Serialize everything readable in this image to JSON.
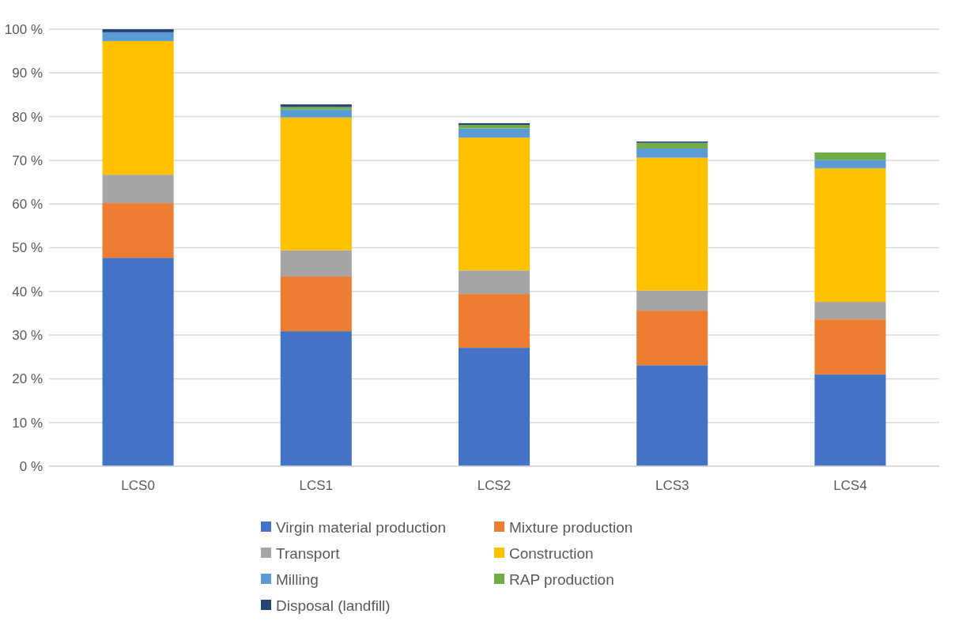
{
  "chart_data": {
    "type": "bar",
    "stacked": true,
    "categories": [
      "LCS0",
      "LCS1",
      "LCS2",
      "LCS3",
      "LCS4"
    ],
    "series": [
      {
        "name": "Virgin material production",
        "color": "#4472c4",
        "values": [
          47.7,
          30.9,
          27.1,
          23.1,
          21.0
        ]
      },
      {
        "name": "Mixture production",
        "color": "#ed7d31",
        "values": [
          12.5,
          12.5,
          12.3,
          12.5,
          12.6
        ]
      },
      {
        "name": "Transport",
        "color": "#a5a5a5",
        "values": [
          6.5,
          6.0,
          5.4,
          4.6,
          4.0
        ]
      },
      {
        "name": "Construction",
        "color": "#ffc000",
        "values": [
          30.6,
          30.4,
          30.4,
          30.4,
          30.6
        ]
      },
      {
        "name": "Milling",
        "color": "#5b9bd5",
        "values": [
          2.0,
          1.8,
          2.1,
          2.1,
          1.9
        ]
      },
      {
        "name": "RAP production",
        "color": "#70ad47",
        "values": [
          0,
          0.6,
          0.8,
          1.3,
          1.7
        ]
      },
      {
        "name": "Disposal (landfill)",
        "color": "#264478",
        "values": [
          0.7,
          0.6,
          0.4,
          0.3,
          0
        ]
      }
    ],
    "ylim": [
      0,
      100
    ],
    "yticks": [
      {
        "value": 0,
        "label": "0 %"
      },
      {
        "value": 10,
        "label": "10 %"
      },
      {
        "value": 20,
        "label": "20 %"
      },
      {
        "value": 30,
        "label": "30 %"
      },
      {
        "value": 40,
        "label": "40 %"
      },
      {
        "value": 50,
        "label": "50 %"
      },
      {
        "value": 60,
        "label": "60 %"
      },
      {
        "value": 70,
        "label": "70 %"
      },
      {
        "value": 80,
        "label": "80 %"
      },
      {
        "value": 90,
        "label": "90 %"
      },
      {
        "value": 100,
        "label": "100 %"
      }
    ],
    "grid": "y",
    "legend": "bottom"
  }
}
